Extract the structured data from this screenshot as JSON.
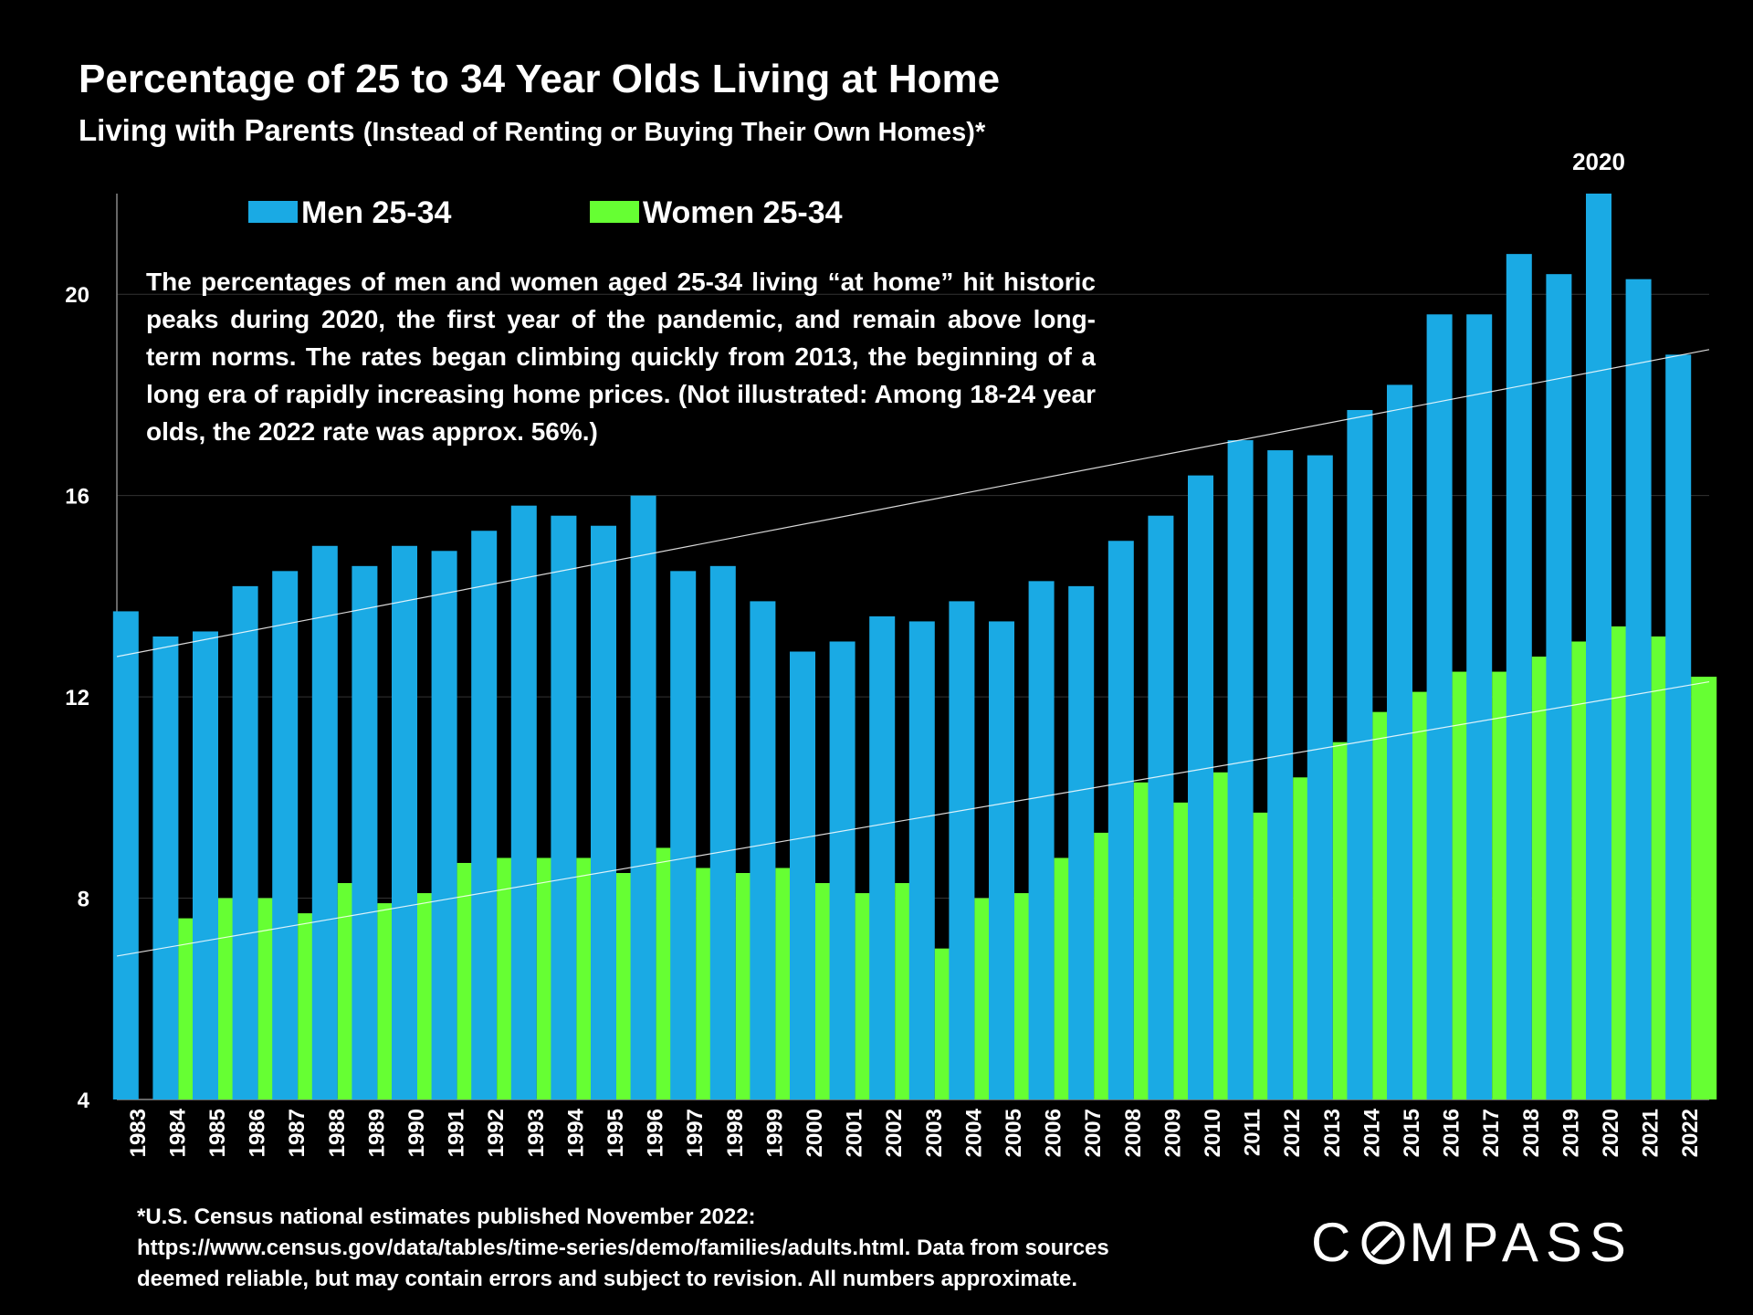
{
  "header": {
    "title": "Percentage of 25 to 34 Year Olds Living at Home",
    "subtitle_main": "Living with Parents",
    "subtitle_paren": "(Instead of Renting or Buying Their Own Homes)*"
  },
  "annotation": "The percentages of men and women aged 25-34 living “at home” hit historic peaks during 2020, the first year of the pandemic, and remain above long-term norms. The rates began climbing quickly from 2013, the beginning of a long era of rapidly increasing home prices. (Not illustrated:  Among 18-24 year olds, the 2022 rate was approx. 56%.)",
  "footnote": {
    "line1": "*U.S. Census national estimates published November 2022:",
    "line2": "https://www.census.gov/data/tables/time-series/demo/families/adults.html.  Data from sources",
    "line3": "deemed reliable, but may contain errors and subject to revision. All numbers approximate."
  },
  "logo": {
    "before": "C",
    "after": "MPASS"
  },
  "colors": {
    "background": "#000000",
    "men": "#1aaae4",
    "women": "#66ff33",
    "trendline": "#ffffff",
    "gridline": "#333333"
  },
  "chart_data": {
    "type": "bar",
    "title": "Percentage of 25 to 34 Year Olds Living at Home",
    "categories": [
      "1983",
      "1984",
      "1985",
      "1986",
      "1987",
      "1988",
      "1989",
      "1990",
      "1991",
      "1992",
      "1993",
      "1994",
      "1995",
      "1996",
      "1997",
      "1998",
      "1999",
      "2000",
      "2001",
      "2002",
      "2003",
      "2004",
      "2005",
      "2006",
      "2007",
      "2008",
      "2009",
      "2010",
      "2011",
      "2012",
      "2013",
      "2014",
      "2015",
      "2016",
      "2017",
      "2018",
      "2019",
      "2020",
      "2021",
      "2022"
    ],
    "series": [
      {
        "name": "Men 25-34",
        "values": [
          13.7,
          13.2,
          13.3,
          14.2,
          14.5,
          15.0,
          14.6,
          15.0,
          14.9,
          15.3,
          15.8,
          15.6,
          15.4,
          16.0,
          14.5,
          14.6,
          13.9,
          12.9,
          13.1,
          13.6,
          13.5,
          13.9,
          13.5,
          14.3,
          14.2,
          15.1,
          15.6,
          16.4,
          17.1,
          16.9,
          16.8,
          17.7,
          18.2,
          19.6,
          19.6,
          20.8,
          20.4,
          22.0,
          20.3,
          18.8
        ]
      },
      {
        "name": "Women 25-34",
        "values": [
          null,
          7.6,
          8.0,
          8.0,
          7.7,
          8.3,
          7.9,
          8.1,
          8.7,
          8.8,
          8.8,
          8.8,
          8.5,
          9.0,
          8.6,
          8.5,
          8.6,
          8.3,
          8.1,
          8.3,
          7.0,
          8.0,
          8.1,
          8.8,
          9.3,
          10.3,
          9.9,
          10.5,
          9.7,
          10.4,
          11.1,
          11.7,
          12.1,
          12.5,
          12.5,
          12.8,
          13.1,
          13.4,
          13.2,
          12.4
        ]
      }
    ],
    "trendlines": [
      {
        "series": "Men 25-34",
        "start": 12.8,
        "end": 18.9
      },
      {
        "series": "Women 25-34",
        "start": 6.85,
        "end": 12.3
      }
    ],
    "ylim": [
      4,
      22
    ],
    "yticks": [
      4,
      8,
      12,
      16,
      20
    ],
    "grid": true,
    "legend_position": "top-left",
    "bar_annotation": {
      "category": "2020",
      "text": "2020"
    }
  }
}
